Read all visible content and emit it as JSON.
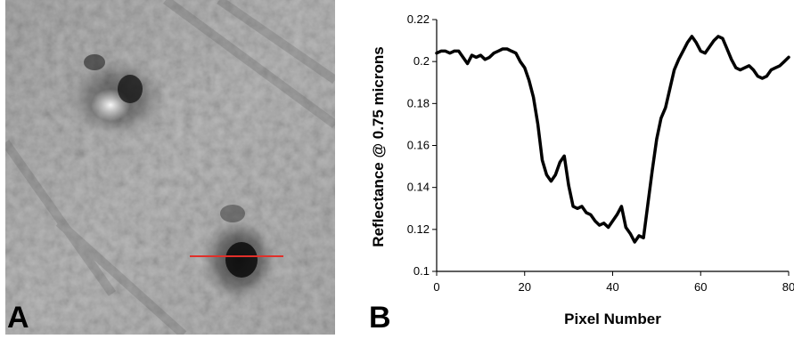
{
  "panel_a": {
    "letter": "A",
    "marker_color": "#e0302a"
  },
  "panel_b": {
    "letter": "B"
  },
  "chart_data": {
    "type": "line",
    "title": "",
    "xlabel": "Pixel Number",
    "ylabel": "Reflectance @ 0.75 microns",
    "xlim": [
      0,
      80
    ],
    "ylim": [
      0.1,
      0.22
    ],
    "x_ticks": [
      0,
      20,
      40,
      60,
      80
    ],
    "y_ticks": [
      0.1,
      0.12,
      0.14,
      0.16,
      0.18,
      0.2,
      0.22
    ],
    "grid": false,
    "line_color": "#000000",
    "x": [
      0,
      1,
      2,
      3,
      4,
      5,
      6,
      7,
      8,
      9,
      10,
      11,
      12,
      13,
      14,
      15,
      16,
      17,
      18,
      19,
      20,
      21,
      22,
      23,
      24,
      25,
      26,
      27,
      28,
      29,
      30,
      31,
      32,
      33,
      34,
      35,
      36,
      37,
      38,
      39,
      40,
      41,
      42,
      43,
      44,
      45,
      46,
      47,
      48,
      49,
      50,
      51,
      52,
      53,
      54,
      55,
      56,
      57,
      58,
      59,
      60,
      61,
      62,
      63,
      64,
      65,
      66,
      67,
      68,
      69,
      70,
      71,
      72,
      73,
      74,
      75,
      76,
      77,
      78,
      79,
      80
    ],
    "y": [
      0.204,
      0.205,
      0.205,
      0.204,
      0.205,
      0.205,
      0.202,
      0.199,
      0.203,
      0.202,
      0.203,
      0.201,
      0.202,
      0.204,
      0.205,
      0.206,
      0.206,
      0.205,
      0.204,
      0.2,
      0.197,
      0.191,
      0.183,
      0.17,
      0.153,
      0.146,
      0.143,
      0.146,
      0.152,
      0.155,
      0.141,
      0.131,
      0.13,
      0.131,
      0.128,
      0.127,
      0.124,
      0.122,
      0.123,
      0.121,
      0.124,
      0.127,
      0.131,
      0.121,
      0.118,
      0.114,
      0.117,
      0.116,
      0.132,
      0.148,
      0.163,
      0.173,
      0.178,
      0.187,
      0.196,
      0.201,
      0.205,
      0.209,
      0.212,
      0.209,
      0.205,
      0.204,
      0.207,
      0.21,
      0.212,
      0.211,
      0.206,
      0.201,
      0.197,
      0.196,
      0.197,
      0.198,
      0.196,
      0.193,
      0.192,
      0.193,
      0.196,
      0.197,
      0.198,
      0.2,
      0.202
    ]
  }
}
